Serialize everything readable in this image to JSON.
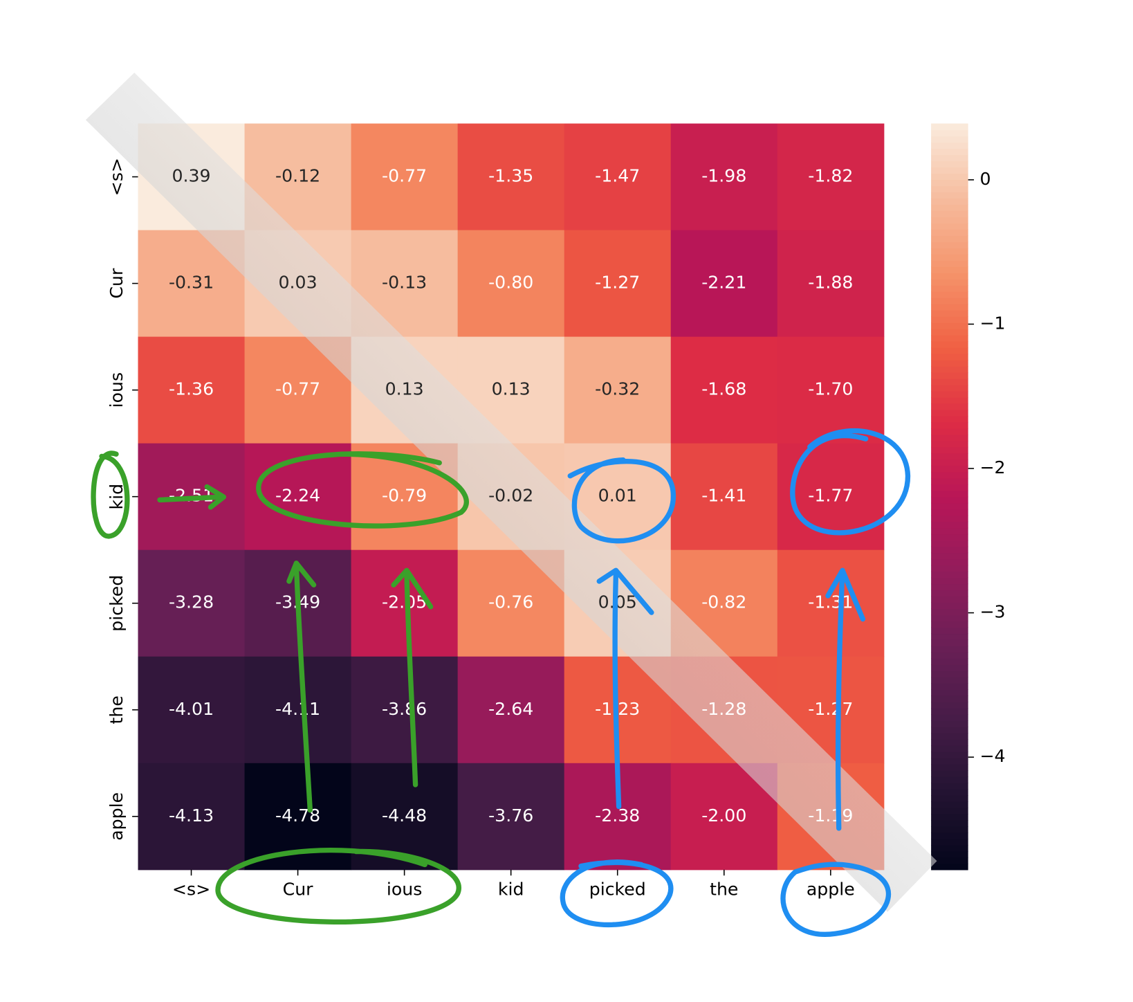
{
  "chart_data": {
    "type": "heatmap",
    "categories": [
      "<s>",
      "Cur",
      "ious",
      "kid",
      "picked",
      "the",
      "apple"
    ],
    "y_categories": [
      "<s>",
      "Cur",
      "ious",
      "kid",
      "picked",
      "the",
      "apple"
    ],
    "values": [
      [
        0.39,
        -0.12,
        -0.77,
        -1.35,
        -1.47,
        -1.98,
        -1.82
      ],
      [
        -0.31,
        0.03,
        -0.13,
        -0.8,
        -1.27,
        -2.21,
        -1.88
      ],
      [
        -1.36,
        -0.77,
        0.13,
        0.13,
        -0.32,
        -1.68,
        -1.7
      ],
      [
        -2.51,
        -2.24,
        -0.79,
        -0.02,
        0.01,
        -1.41,
        -1.77
      ],
      [
        -3.28,
        -3.49,
        -2.05,
        -0.76,
        0.05,
        -0.82,
        -1.31
      ],
      [
        -4.01,
        -4.11,
        -3.86,
        -2.64,
        -1.23,
        -1.28,
        -1.27
      ],
      [
        -4.13,
        -4.78,
        -4.48,
        -3.76,
        -2.38,
        -2.0,
        -1.19
      ]
    ],
    "value_labels": [
      [
        "0.39",
        "-0.12",
        "-0.77",
        "-1.35",
        "-1.47",
        "-1.98",
        "-1.82"
      ],
      [
        "-0.31",
        "0.03",
        "-0.13",
        "-0.80",
        "-1.27",
        "-2.21",
        "-1.88"
      ],
      [
        "-1.36",
        "-0.77",
        "0.13",
        "0.13",
        "-0.32",
        "-1.68",
        "-1.70"
      ],
      [
        "-2.51",
        "-2.24",
        "-0.79",
        "-0.02",
        "0.01",
        "-1.41",
        "-1.77"
      ],
      [
        "-3.28",
        "-3.49",
        "-2.05",
        "-0.76",
        "0.05",
        "-0.82",
        "-1.31"
      ],
      [
        "-4.01",
        "-4.11",
        "-3.86",
        "-2.64",
        "-1.23",
        "-1.28",
        "-1.27"
      ],
      [
        "-4.13",
        "-4.78",
        "-4.48",
        "-3.76",
        "-2.38",
        "-2.00",
        "-1.19"
      ]
    ],
    "colormap": "rocket",
    "colorbar_lim": [
      -4.78,
      0.39
    ],
    "colorbar_ticks": [
      0,
      {
        "value": -1,
        "label": "−1"
      },
      {
        "value": -2,
        "label": "−2"
      },
      {
        "value": -3,
        "label": "−3"
      },
      {
        "value": -4,
        "label": "−4"
      }
    ]
  }
}
